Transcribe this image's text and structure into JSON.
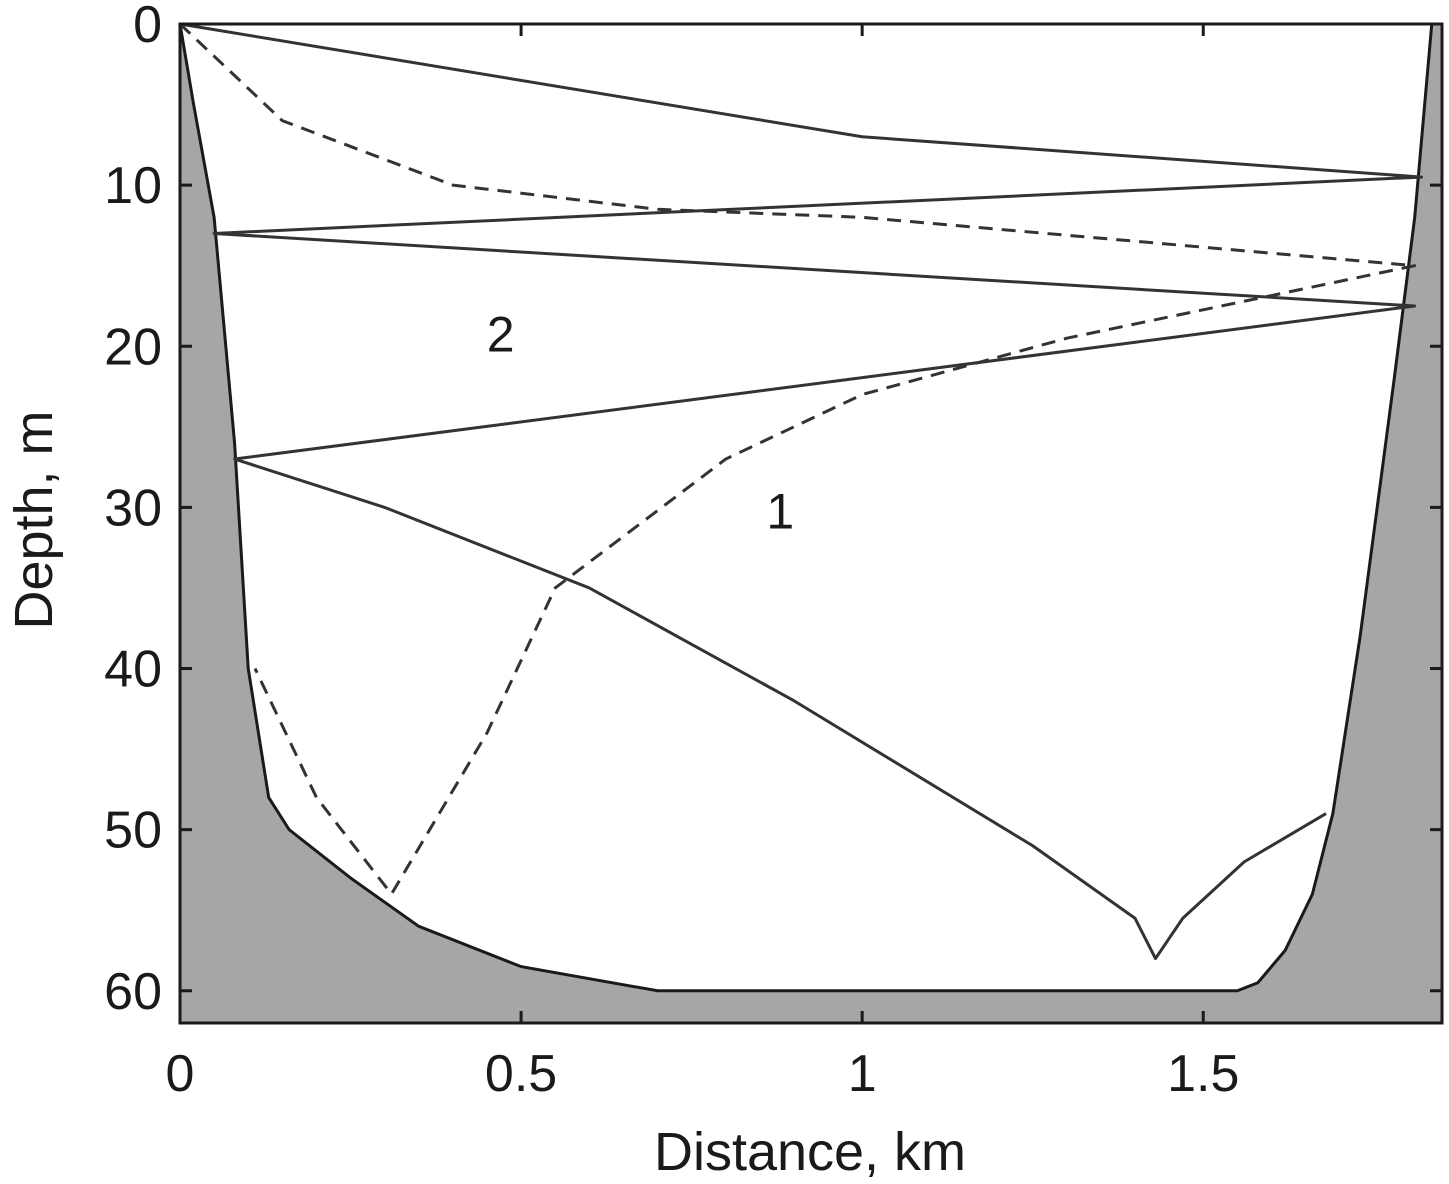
{
  "chart_data": {
    "type": "line",
    "title": "",
    "xlabel": "Distance, km",
    "ylabel": "Depth, m",
    "xlim": [
      0,
      1.85
    ],
    "ylim": [
      0,
      62
    ],
    "y_inverted": true,
    "x_ticks": [
      {
        "value": 0,
        "label": "0"
      },
      {
        "value": 0.5,
        "label": "0.5"
      },
      {
        "value": 1,
        "label": "1"
      },
      {
        "value": 1.5,
        "label": "1.5"
      }
    ],
    "y_ticks": [
      {
        "value": 0,
        "label": "0"
      },
      {
        "value": 10,
        "label": "10"
      },
      {
        "value": 20,
        "label": "20"
      },
      {
        "value": 30,
        "label": "30"
      },
      {
        "value": 40,
        "label": "40"
      },
      {
        "value": 50,
        "label": "50"
      },
      {
        "value": 60,
        "label": "60"
      }
    ],
    "grid": false,
    "bottom": {
      "fill_color": "#a6a6a6",
      "profile": [
        [
          0.0,
          0
        ],
        [
          0.02,
          5
        ],
        [
          0.05,
          12
        ],
        [
          0.08,
          26
        ],
        [
          0.1,
          40
        ],
        [
          0.13,
          48
        ],
        [
          0.16,
          50
        ],
        [
          0.25,
          53
        ],
        [
          0.35,
          56
        ],
        [
          0.5,
          58.5
        ],
        [
          0.7,
          60
        ],
        [
          1.0,
          60
        ],
        [
          1.55,
          60
        ],
        [
          1.58,
          59.5
        ],
        [
          1.62,
          57.5
        ],
        [
          1.66,
          54
        ],
        [
          1.69,
          49
        ],
        [
          1.73,
          38
        ],
        [
          1.78,
          22
        ],
        [
          1.81,
          12
        ],
        [
          1.835,
          0
        ]
      ]
    },
    "series": [
      {
        "label": "2",
        "style": "solid",
        "color": "#333333",
        "points": [
          [
            0.0,
            0
          ],
          [
            1.0,
            7
          ],
          [
            1.82,
            9.5
          ],
          [
            0.05,
            13
          ],
          [
            1.81,
            17.5
          ],
          [
            0.08,
            27
          ],
          [
            0.3,
            30
          ],
          [
            0.6,
            35
          ],
          [
            0.9,
            42
          ],
          [
            1.25,
            51
          ],
          [
            1.4,
            55.5
          ],
          [
            1.43,
            58
          ],
          [
            1.47,
            55.5
          ],
          [
            1.56,
            52
          ],
          [
            1.68,
            49
          ]
        ]
      },
      {
        "label": "1",
        "style": "dashed",
        "color": "#333333",
        "points": [
          [
            0.0,
            0
          ],
          [
            0.15,
            6
          ],
          [
            0.4,
            10
          ],
          [
            0.7,
            11.5
          ],
          [
            1.0,
            12
          ],
          [
            1.81,
            15
          ],
          [
            1.3,
            19.5
          ],
          [
            1.0,
            23
          ],
          [
            0.8,
            27
          ],
          [
            0.55,
            35
          ],
          [
            0.45,
            44
          ],
          [
            0.31,
            54
          ],
          [
            0.2,
            48
          ],
          [
            0.11,
            40
          ]
        ]
      }
    ],
    "annotations": [
      {
        "text": "2",
        "x": 0.47,
        "y": 19.5
      },
      {
        "text": "1",
        "x": 0.88,
        "y": 30.5
      }
    ]
  }
}
